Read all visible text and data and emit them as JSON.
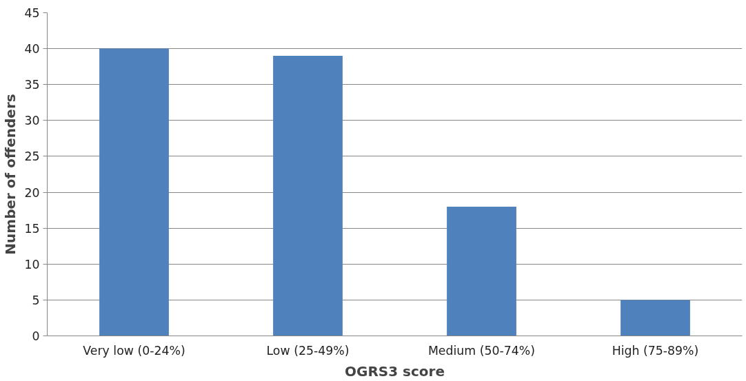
{
  "chart_data": {
    "type": "bar",
    "xlabel": "OGRS3 score",
    "ylabel": "Number of offenders",
    "categories": [
      "Very low (0-24%)",
      "Low (25-49%)",
      "Medium (50-74%)",
      "High (75-89%)"
    ],
    "values": [
      40,
      39,
      18,
      5
    ],
    "color": "#4f81bd",
    "ylim": [
      0,
      45
    ],
    "yticks": [
      0,
      5,
      10,
      15,
      20,
      25,
      30,
      35,
      40,
      45
    ],
    "grid": "y"
  }
}
